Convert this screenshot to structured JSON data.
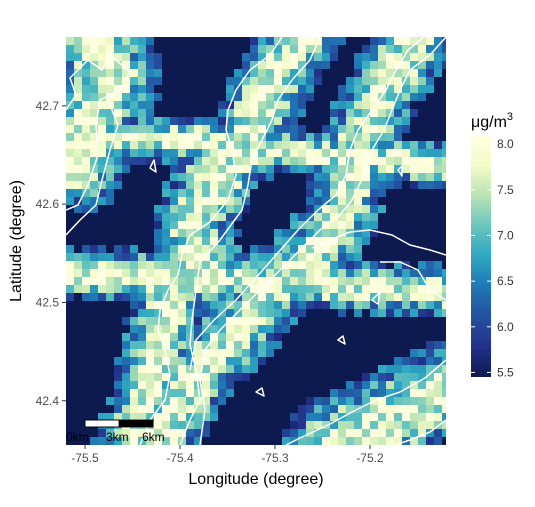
{
  "map": {
    "x_axis_label": "Longitude (degree)",
    "y_axis_label": "Latitude (degree)",
    "x_range": [
      -75.52,
      -75.12
    ],
    "y_range": [
      42.355,
      42.77
    ],
    "x_ticks": [
      {
        "value": -75.5,
        "label": "-75.5"
      },
      {
        "value": -75.4,
        "label": "-75.4"
      },
      {
        "value": -75.3,
        "label": "-75.3"
      },
      {
        "value": -75.2,
        "label": "-75.2"
      }
    ],
    "y_ticks": [
      {
        "value": 42.4,
        "label": "42.4"
      },
      {
        "value": 42.5,
        "label": "42.5"
      },
      {
        "value": 42.6,
        "label": "42.6"
      },
      {
        "value": 42.7,
        "label": "42.7"
      }
    ],
    "background_color": "#0c1a4f",
    "contour_color": "#ffffff"
  },
  "legend": {
    "title_prefix": "μg/m",
    "title_superscript": "3",
    "min": 5.45,
    "max": 8.1,
    "ticks": [
      "8.0",
      "7.5",
      "7.0",
      "6.5",
      "6.0",
      "5.5"
    ],
    "tick_values": [
      8.0,
      7.5,
      7.0,
      6.5,
      6.0,
      5.5
    ],
    "colors": [
      "#0c1a4f",
      "#23318a",
      "#2451a0",
      "#1f78b4",
      "#2ea7c1",
      "#6ac5be",
      "#b9e3b4",
      "#f4fbc8",
      "#ffffe0"
    ]
  },
  "scale_bar": {
    "labels": [
      "0km",
      "3km",
      "6km"
    ]
  }
}
